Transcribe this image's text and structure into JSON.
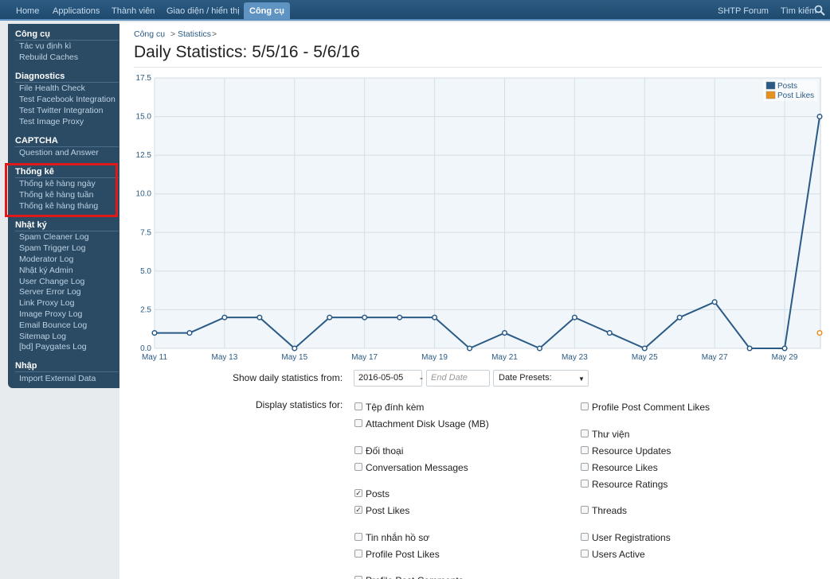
{
  "topnav": {
    "tabs": [
      {
        "label": "Home"
      },
      {
        "label": "Applications"
      },
      {
        "label": "Thành viên"
      },
      {
        "label": "Giao diện / hiển thị"
      },
      {
        "label": "Công cụ"
      }
    ],
    "active_tab": "Công cụ",
    "right": [
      {
        "label": "SHTP Forum"
      },
      {
        "label": "Tìm kiếm"
      }
    ]
  },
  "sidebar": {
    "groups": [
      {
        "heading": "Công cụ",
        "items": [
          "Tác vụ định kì",
          "Rebuild Caches"
        ]
      },
      {
        "heading": "Diagnostics",
        "items": [
          "File Health Check",
          "Test Facebook Integration",
          "Test Twitter Integration",
          "Test Image Proxy"
        ]
      },
      {
        "heading": "CAPTCHA",
        "items": [
          "Question and Answer"
        ]
      },
      {
        "heading": "Thống kê",
        "items": [
          "Thống kê hàng ngày",
          "Thống kê hàng tuần",
          "Thống kê hàng tháng"
        ]
      },
      {
        "heading": "Nhật ký",
        "items": [
          "Spam Cleaner Log",
          "Spam Trigger Log",
          "Moderator Log",
          "Nhật ký Admin",
          "User Change Log",
          "Server Error Log",
          "Link Proxy Log",
          "Image Proxy Log",
          "Email Bounce Log",
          "Sitemap Log",
          "[bd] Paygates Log"
        ]
      },
      {
        "heading": "Nhập",
        "items": [
          "Import External Data"
        ]
      }
    ]
  },
  "breadcrumb": [
    {
      "label": "Công cụ"
    },
    {
      "label": "Statistics"
    }
  ],
  "breadcrumb_separator": ">",
  "page_title": "Daily Statistics: 5/5/16 - 5/6/16",
  "chart_data": {
    "type": "line",
    "x": [
      "May 11",
      "May 12",
      "May 13",
      "May 14",
      "May 15",
      "May 16",
      "May 17",
      "May 18",
      "May 19",
      "May 20",
      "May 21",
      "May 22",
      "May 23",
      "May 24",
      "May 25",
      "May 26",
      "May 27",
      "May 28",
      "May 29",
      "May 30"
    ],
    "x_tick_labels": [
      "May 11",
      "May 13",
      "May 15",
      "May 17",
      "May 19",
      "May 21",
      "May 23",
      "May 25",
      "May 27",
      "May 29"
    ],
    "y_tick_labels": [
      "17.5",
      "15.0",
      "12.5",
      "10.0",
      "7.5",
      "5.0",
      "2.5",
      "0.0"
    ],
    "ylim": [
      0,
      17.5
    ],
    "grid": true,
    "legend_position": "top-right",
    "series": [
      {
        "name": "Posts",
        "color": "#2a5a85",
        "values": [
          1,
          1,
          2,
          2,
          0,
          2,
          2,
          2,
          2,
          0,
          1,
          0,
          2,
          1,
          0,
          2,
          3,
          0,
          0,
          15
        ]
      },
      {
        "name": "Post Likes",
        "color": "#e8901c",
        "values": [
          null,
          null,
          null,
          null,
          null,
          null,
          null,
          null,
          null,
          null,
          null,
          null,
          null,
          null,
          null,
          null,
          null,
          null,
          null,
          1
        ]
      }
    ]
  },
  "form": {
    "from_label": "Show daily statistics from:",
    "start_date": "2016-05-05",
    "range_dash": "-",
    "end_date_placeholder": "End Date",
    "presets_label": "Date Presets:",
    "display_label": "Display statistics for:",
    "left_options": [
      {
        "label": "Tệp đính kèm",
        "checked": false
      },
      {
        "label": "Attachment Disk Usage (MB)",
        "checked": false
      },
      {
        "label": "Đối thoại",
        "checked": false
      },
      {
        "label": "Conversation Messages",
        "checked": false
      },
      {
        "label": "Posts",
        "checked": true
      },
      {
        "label": "Post Likes",
        "checked": true
      },
      {
        "label": "Tin nhắn hồ sơ",
        "checked": false
      },
      {
        "label": "Profile Post Likes",
        "checked": false
      },
      {
        "label": "Profile Post Comments",
        "checked": false
      }
    ],
    "right_options": [
      {
        "label": "Profile Post Comment Likes",
        "checked": false
      },
      {
        "label": "Thư viện",
        "checked": false
      },
      {
        "label": "Resource Updates",
        "checked": false
      },
      {
        "label": "Resource Likes",
        "checked": false
      },
      {
        "label": "Resource Ratings",
        "checked": false
      },
      {
        "label": "Threads",
        "checked": false
      },
      {
        "label": "User Registrations",
        "checked": false
      },
      {
        "label": "Users Active",
        "checked": false
      }
    ]
  }
}
